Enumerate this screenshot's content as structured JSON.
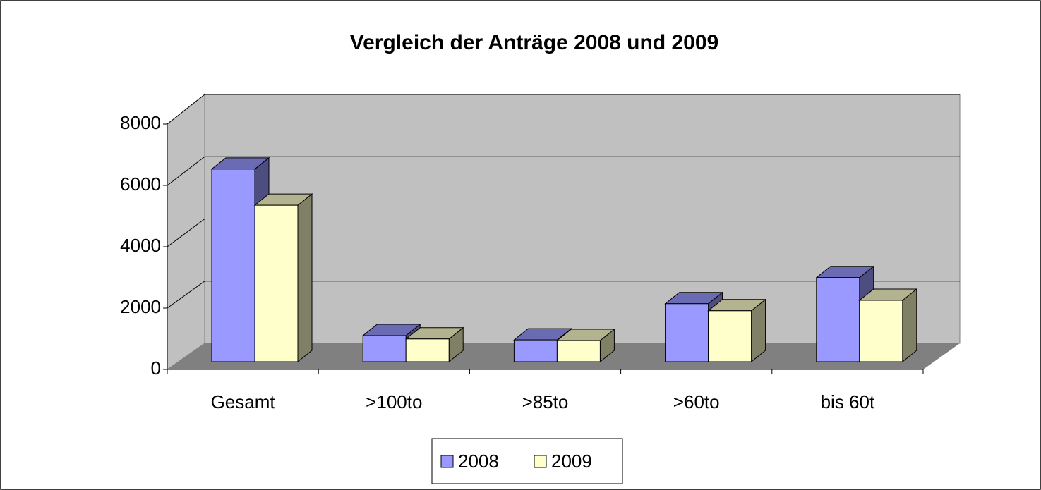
{
  "chart_data": {
    "type": "bar3d",
    "title": "Vergleich der Anträge 2008 und 2009",
    "categories": [
      "Gesamt",
      ">100to",
      ">85to",
      ">60to",
      "bis 60t"
    ],
    "series": [
      {
        "name": "2008",
        "color": "#9999ff",
        "values": [
          6280,
          850,
          710,
          1890,
          2740
        ]
      },
      {
        "name": "2009",
        "color": "#ffffcc",
        "values": [
          5100,
          740,
          690,
          1660,
          2000
        ]
      }
    ],
    "ylim": [
      0,
      8000
    ],
    "yticks": [
      0,
      2000,
      4000,
      6000,
      8000
    ],
    "grid": true,
    "legend": "bottom"
  }
}
